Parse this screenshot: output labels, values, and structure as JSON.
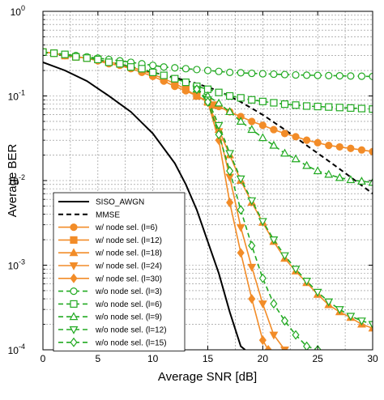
{
  "chart_data": {
    "type": "line",
    "xlabel": "Average SNR [dB]",
    "ylabel": "Average BER",
    "xlim": [
      0,
      30
    ],
    "ylim": [
      0.0001,
      1
    ],
    "yscale": "log",
    "grid": true,
    "legend_position": "bottom-left",
    "x_ticks": [
      {
        "value": 0,
        "label": "0"
      },
      {
        "value": 5,
        "label": "5"
      },
      {
        "value": 10,
        "label": "10"
      },
      {
        "value": 15,
        "label": "15"
      },
      {
        "value": 20,
        "label": "20"
      },
      {
        "value": 25,
        "label": "25"
      },
      {
        "value": 30,
        "label": "30"
      }
    ],
    "y_ticks": [
      {
        "value": 1,
        "base": "10",
        "exp": "0"
      },
      {
        "value": 0.1,
        "base": "10",
        "exp": "-1"
      },
      {
        "value": 0.01,
        "base": "10",
        "exp": "-2"
      },
      {
        "value": 0.001,
        "base": "10",
        "exp": "-3"
      },
      {
        "value": 0.0001,
        "base": "10",
        "exp": "-4"
      }
    ],
    "series": [
      {
        "name": "SISO_AWGN",
        "color": "#000000",
        "dash": "solid",
        "marker": "none",
        "markerFill": "none",
        "x": [
          0,
          2,
          4,
          6,
          8,
          10,
          12,
          13,
          14,
          15,
          16,
          17,
          18,
          18.4
        ],
        "y": [
          0.25,
          0.2,
          0.15,
          0.1,
          0.065,
          0.036,
          0.016,
          0.009,
          0.0045,
          0.0019,
          0.0008,
          0.00028,
          0.00011,
          0.0001
        ]
      },
      {
        "name": "MMSE",
        "color": "#000000",
        "dash": "dashed",
        "marker": "none",
        "markerFill": "none",
        "x": [
          0,
          2,
          4,
          6,
          8,
          10,
          12,
          14,
          16,
          18,
          20,
          22,
          24,
          26,
          28,
          30
        ],
        "y": [
          0.33,
          0.3,
          0.28,
          0.25,
          0.22,
          0.19,
          0.165,
          0.14,
          0.115,
          0.085,
          0.06,
          0.04,
          0.026,
          0.017,
          0.011,
          0.007
        ]
      },
      {
        "name": "w/ node sel. (l=6)",
        "color": "#F28C28",
        "dash": "solid",
        "marker": "circle",
        "markerFill": "#F28C28",
        "x": [
          0,
          1,
          2,
          3,
          4,
          5,
          6,
          7,
          8,
          9,
          10,
          11,
          12,
          13,
          14,
          15,
          16,
          17,
          18,
          19,
          20,
          21,
          22,
          23,
          24,
          25,
          26,
          27,
          28,
          29,
          30
        ],
        "y": [
          0.33,
          0.32,
          0.3,
          0.29,
          0.28,
          0.26,
          0.24,
          0.23,
          0.21,
          0.19,
          0.17,
          0.15,
          0.13,
          0.115,
          0.1,
          0.087,
          0.075,
          0.065,
          0.057,
          0.05,
          0.045,
          0.04,
          0.036,
          0.033,
          0.03,
          0.028,
          0.026,
          0.025,
          0.024,
          0.023,
          0.022
        ]
      },
      {
        "name": "w/ node sel. (l=12)",
        "color": "#F28C28",
        "dash": "solid",
        "marker": "square",
        "markerFill": "#F28C28",
        "x": [
          0,
          1,
          2,
          3,
          4,
          5,
          6,
          7,
          8,
          9,
          10,
          11,
          12,
          13,
          14,
          15,
          15.5
        ],
        "y": [
          0.33,
          0.32,
          0.3,
          0.29,
          0.28,
          0.27,
          0.25,
          0.24,
          0.22,
          0.2,
          0.18,
          0.16,
          0.14,
          0.12,
          0.1,
          0.085,
          0.078
        ]
      },
      {
        "name": "w/ node sel. (l=18)",
        "color": "#F28C28",
        "dash": "solid",
        "marker": "triangle-up",
        "markerFill": "#F28C28",
        "x": [
          15,
          16,
          17,
          18,
          19,
          20,
          21,
          22,
          23,
          24,
          25,
          26,
          27,
          28,
          29,
          30
        ],
        "y": [
          0.085,
          0.04,
          0.02,
          0.01,
          0.0055,
          0.0032,
          0.0019,
          0.0012,
          0.00085,
          0.00062,
          0.00045,
          0.00034,
          0.00028,
          0.00024,
          0.0002,
          0.00018
        ]
      },
      {
        "name": "w/ node sel. (l=24)",
        "color": "#F28C28",
        "dash": "solid",
        "marker": "triangle-down",
        "markerFill": "#F28C28",
        "x": [
          15,
          16,
          17,
          18,
          19,
          20,
          21,
          22
        ],
        "y": [
          0.085,
          0.038,
          0.011,
          0.0028,
          0.00095,
          0.00035,
          0.00015,
          0.0001
        ]
      },
      {
        "name": "w/ node sel. (l=30)",
        "color": "#F28C28",
        "dash": "solid",
        "marker": "diamond",
        "markerFill": "#F28C28",
        "x": [
          15,
          16,
          17,
          18,
          19,
          20,
          20.5
        ],
        "y": [
          0.085,
          0.03,
          0.0055,
          0.0014,
          0.0004,
          0.00013,
          0.0001
        ]
      },
      {
        "name": "w/o node sel. (l=3)",
        "color": "#22AA22",
        "dash": "dashed",
        "marker": "circle",
        "markerFill": "#ffffff",
        "x": [
          0,
          1,
          2,
          3,
          4,
          5,
          6,
          7,
          8,
          9,
          10,
          11,
          12,
          13,
          14,
          15,
          16,
          17,
          18,
          19,
          20,
          21,
          22,
          23,
          24,
          25,
          26,
          27,
          28,
          29,
          30
        ],
        "y": [
          0.33,
          0.32,
          0.31,
          0.3,
          0.29,
          0.28,
          0.27,
          0.26,
          0.25,
          0.24,
          0.23,
          0.22,
          0.215,
          0.21,
          0.205,
          0.2,
          0.195,
          0.19,
          0.188,
          0.185,
          0.183,
          0.181,
          0.179,
          0.177,
          0.176,
          0.175,
          0.174,
          0.173,
          0.172,
          0.171,
          0.17
        ]
      },
      {
        "name": "w/o node sel. (l=6)",
        "color": "#22AA22",
        "dash": "dashed",
        "marker": "square",
        "markerFill": "#ffffff",
        "x": [
          0,
          1,
          2,
          3,
          4,
          5,
          6,
          7,
          8,
          9,
          10,
          11,
          12,
          13,
          14,
          15,
          16,
          17,
          18,
          19,
          20,
          21,
          22,
          23,
          24,
          25,
          26,
          27,
          28,
          29,
          30
        ],
        "y": [
          0.33,
          0.32,
          0.31,
          0.29,
          0.28,
          0.27,
          0.25,
          0.24,
          0.22,
          0.21,
          0.19,
          0.175,
          0.16,
          0.145,
          0.13,
          0.12,
          0.11,
          0.1,
          0.095,
          0.09,
          0.086,
          0.083,
          0.08,
          0.078,
          0.076,
          0.075,
          0.074,
          0.073,
          0.072,
          0.071,
          0.07
        ]
      },
      {
        "name": "w/o node sel. (l=9)",
        "color": "#22AA22",
        "dash": "dashed",
        "marker": "triangle-up",
        "markerFill": "#ffffff",
        "x": [
          14,
          15,
          16,
          17,
          18,
          19,
          20,
          21,
          22,
          23,
          24,
          25,
          26,
          27,
          28,
          29,
          30
        ],
        "y": [
          0.12,
          0.1,
          0.082,
          0.065,
          0.05,
          0.04,
          0.032,
          0.026,
          0.021,
          0.018,
          0.015,
          0.013,
          0.0118,
          0.0108,
          0.0102,
          0.0098,
          0.0095
        ]
      },
      {
        "name": "w/o node sel. (l=12)",
        "color": "#22AA22",
        "dash": "dashed",
        "marker": "triangle-down",
        "markerFill": "#ffffff",
        "x": [
          14,
          15,
          16,
          17,
          18,
          19,
          20,
          21,
          22,
          23,
          24,
          25,
          26,
          27,
          28,
          29,
          30
        ],
        "y": [
          0.12,
          0.09,
          0.045,
          0.021,
          0.0105,
          0.0058,
          0.0033,
          0.002,
          0.0013,
          0.0009,
          0.00065,
          0.00048,
          0.00037,
          0.0003,
          0.00025,
          0.00022,
          0.0002
        ]
      },
      {
        "name": "w/o node sel. (l=15)",
        "color": "#22AA22",
        "dash": "dashed",
        "marker": "diamond",
        "markerFill": "#ffffff",
        "x": [
          14,
          15,
          16,
          17,
          18,
          19,
          20,
          21,
          22,
          23,
          24,
          25
        ],
        "y": [
          0.12,
          0.085,
          0.035,
          0.013,
          0.0045,
          0.0017,
          0.0007,
          0.00035,
          0.00022,
          0.00015,
          0.00011,
          0.0001
        ]
      }
    ]
  }
}
